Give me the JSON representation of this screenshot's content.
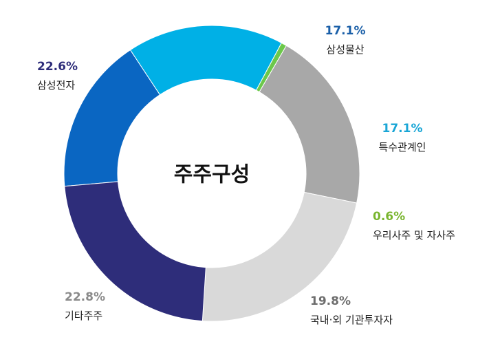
{
  "chart_data": {
    "type": "pie",
    "donut": true,
    "title": "주주구성",
    "unit": "%",
    "legend": "none",
    "series": [
      {
        "name": "삼성물산",
        "value": 17.1,
        "value_label": "17.1%",
        "color": "#0a66c2",
        "label_color": "#1a5fa8"
      },
      {
        "name": "특수관계인",
        "value": 17.1,
        "value_label": "17.1%",
        "color": "#00b0e6",
        "label_color": "#1aa6d6"
      },
      {
        "name": "우리사주 및 자사주",
        "value": 0.6,
        "value_label": "0.6%",
        "color": "#6cc84a",
        "label_color": "#79b52e"
      },
      {
        "name": "국내·외 기관투자자",
        "value": 19.8,
        "value_label": "19.8%",
        "color": "#a8a8a8",
        "label_color": "#6d6d6d"
      },
      {
        "name": "기타주주",
        "value": 22.8,
        "value_label": "22.8%",
        "color": "#d9d9d9",
        "label_color": "#8a8a8a"
      },
      {
        "name": "삼성전자",
        "value": 22.6,
        "value_label": "22.6%",
        "color": "#2e2d7a",
        "label_color": "#2e2d7a"
      }
    ]
  }
}
